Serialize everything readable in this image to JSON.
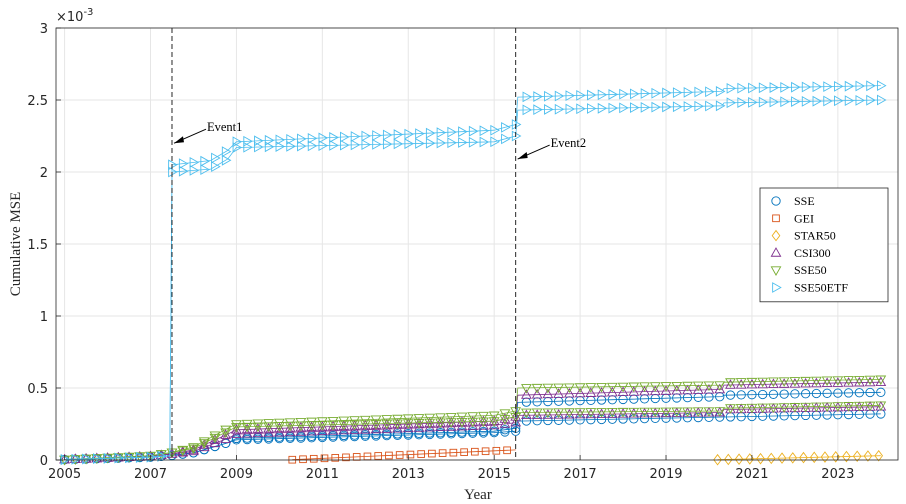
{
  "chart_data": {
    "type": "line",
    "title": "",
    "xlabel": "Year",
    "ylabel": "Cumulative MSE",
    "y_scale_label": "×10",
    "y_scale_exponent": "-3",
    "xlim": [
      2004.8,
      2024.4
    ],
    "ylim": [
      0,
      3
    ],
    "xticks": [
      2005,
      2007,
      2009,
      2011,
      2013,
      2015,
      2017,
      2019,
      2021,
      2023
    ],
    "yticks": [
      0,
      0.5,
      1,
      1.5,
      2,
      2.5,
      3
    ],
    "ytick_labels": [
      "0",
      "0.5",
      "1",
      "1.5",
      "2",
      "2.5",
      "3"
    ],
    "grid": true,
    "legend_position": "right",
    "events": [
      {
        "name": "Event1",
        "x": 2007.5
      },
      {
        "name": "Event2",
        "x": 2015.5
      }
    ],
    "series": [
      {
        "name": "SSE",
        "color": "#0072BD",
        "marker": "circle",
        "x_start": 2005,
        "x_end": 2024,
        "bands": [
          {
            "mult": 1.0,
            "points": [
              [
                2005,
                0.003
              ],
              [
                2007.0,
                0.02
              ],
              [
                2007.45,
                0.03
              ],
              [
                2008.0,
                0.05
              ],
              [
                2008.8,
                0.12
              ],
              [
                2009.0,
                0.14
              ],
              [
                2015.0,
                0.19
              ],
              [
                2015.5,
                0.2
              ],
              [
                2015.55,
                0.27
              ],
              [
                2024,
                0.32
              ]
            ]
          },
          {
            "mult": 1.0,
            "points": [
              [
                2005,
                0.003
              ],
              [
                2007.0,
                0.02
              ],
              [
                2007.45,
                0.03
              ],
              [
                2008.0,
                0.05
              ],
              [
                2008.8,
                0.12
              ],
              [
                2009.0,
                0.15
              ],
              [
                2015.0,
                0.2
              ],
              [
                2015.5,
                0.22
              ],
              [
                2015.55,
                0.4
              ],
              [
                2020.3,
                0.44
              ],
              [
                2020.35,
                0.45
              ],
              [
                2024,
                0.47
              ]
            ]
          }
        ]
      },
      {
        "name": "GEI",
        "color": "#D95319",
        "marker": "square",
        "x_start": 2010.3,
        "x_end": 2015.5,
        "bands": [
          {
            "mult": 1.0,
            "points": [
              [
                2010.3,
                0.002
              ],
              [
                2015.5,
                0.07
              ]
            ]
          }
        ]
      },
      {
        "name": "STAR50",
        "color": "#EDB120",
        "marker": "diamond",
        "x_start": 2020.2,
        "x_end": 2024,
        "bands": [
          {
            "mult": 1.0,
            "points": [
              [
                2020.2,
                0.002
              ],
              [
                2024,
                0.03
              ]
            ]
          }
        ]
      },
      {
        "name": "CSI300",
        "color": "#7E2F8E",
        "marker": "triangle-up",
        "x_start": 2005,
        "x_end": 2024,
        "bands": [
          {
            "mult": 1.0,
            "points": [
              [
                2005,
                0.003
              ],
              [
                2007.0,
                0.025
              ],
              [
                2007.45,
                0.04
              ],
              [
                2008.0,
                0.06
              ],
              [
                2008.8,
                0.15
              ],
              [
                2009.0,
                0.18
              ],
              [
                2015.0,
                0.24
              ],
              [
                2015.5,
                0.26
              ],
              [
                2015.55,
                0.31
              ],
              [
                2020.3,
                0.33
              ],
              [
                2020.35,
                0.35
              ],
              [
                2024,
                0.37
              ]
            ]
          },
          {
            "mult": 1.0,
            "points": [
              [
                2005,
                0.003
              ],
              [
                2007.0,
                0.025
              ],
              [
                2007.45,
                0.04
              ],
              [
                2008.0,
                0.07
              ],
              [
                2008.8,
                0.18
              ],
              [
                2009.0,
                0.21
              ],
              [
                2015.0,
                0.27
              ],
              [
                2015.5,
                0.3
              ],
              [
                2015.55,
                0.45
              ],
              [
                2020.3,
                0.49
              ],
              [
                2020.35,
                0.52
              ],
              [
                2024,
                0.54
              ]
            ]
          }
        ]
      },
      {
        "name": "SSE50",
        "color": "#77AC30",
        "marker": "triangle-down",
        "x_start": 2005,
        "x_end": 2024,
        "bands": [
          {
            "mult": 1.0,
            "points": [
              [
                2005,
                0.003
              ],
              [
                2007.0,
                0.03
              ],
              [
                2007.45,
                0.05
              ],
              [
                2008.0,
                0.08
              ],
              [
                2008.8,
                0.2
              ],
              [
                2009.0,
                0.23
              ],
              [
                2015.0,
                0.27
              ],
              [
                2015.5,
                0.3
              ],
              [
                2015.55,
                0.33
              ],
              [
                2020.3,
                0.34
              ],
              [
                2020.35,
                0.36
              ],
              [
                2024,
                0.38
              ]
            ]
          },
          {
            "mult": 1.0,
            "points": [
              [
                2005,
                0.003
              ],
              [
                2007.0,
                0.03
              ],
              [
                2007.45,
                0.05
              ],
              [
                2008.0,
                0.09
              ],
              [
                2008.8,
                0.22
              ],
              [
                2009.0,
                0.25
              ],
              [
                2015.0,
                0.31
              ],
              [
                2015.5,
                0.34
              ],
              [
                2015.55,
                0.5
              ],
              [
                2020.3,
                0.52
              ],
              [
                2020.35,
                0.54
              ],
              [
                2024,
                0.56
              ]
            ]
          }
        ]
      },
      {
        "name": "SSE50ETF",
        "color": "#4DBEEE",
        "marker": "triangle-right",
        "x_start": 2005,
        "x_end": 2024,
        "bands": [
          {
            "mult": 1.0,
            "points": [
              [
                2005,
                0.003
              ],
              [
                2007.0,
                0.02
              ],
              [
                2007.45,
                0.03
              ],
              [
                2007.5,
                2.0
              ],
              [
                2008.4,
                2.02
              ],
              [
                2008.8,
                2.09
              ],
              [
                2009.0,
                2.17
              ],
              [
                2015.0,
                2.21
              ],
              [
                2015.5,
                2.25
              ],
              [
                2015.55,
                2.43
              ],
              [
                2020.3,
                2.46
              ],
              [
                2020.35,
                2.48
              ],
              [
                2024,
                2.5
              ]
            ]
          },
          {
            "mult": 1.0,
            "points": [
              [
                2005,
                0.003
              ],
              [
                2007.0,
                0.02
              ],
              [
                2007.45,
                0.03
              ],
              [
                2007.5,
                2.05
              ],
              [
                2008.4,
                2.08
              ],
              [
                2008.8,
                2.15
              ],
              [
                2009.0,
                2.21
              ],
              [
                2015.0,
                2.29
              ],
              [
                2015.5,
                2.33
              ],
              [
                2015.55,
                2.52
              ],
              [
                2020.3,
                2.56
              ],
              [
                2020.35,
                2.58
              ],
              [
                2024,
                2.6
              ]
            ]
          }
        ]
      }
    ]
  }
}
